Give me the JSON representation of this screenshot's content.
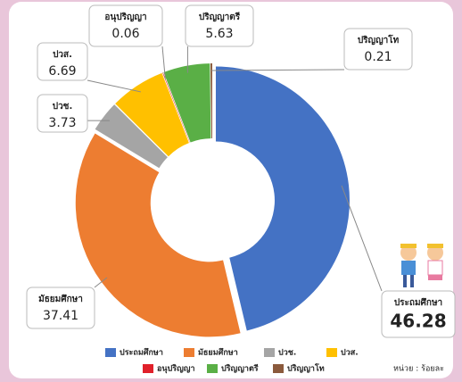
{
  "chart_data": {
    "type": "donut",
    "categories": [
      "ประถมศึกษา",
      "มัธยมศึกษา",
      "ปวช.",
      "ปวส.",
      "อนุปริญญา",
      "ปริญญาตรี",
      "ปริญญาโท"
    ],
    "values": [
      46.28,
      37.41,
      3.73,
      6.69,
      0.06,
      5.63,
      0.21
    ],
    "colors": [
      "#4472c4",
      "#ed7d31",
      "#a5a5a5",
      "#ffc000",
      "#e0202a",
      "#5aaf46",
      "#8b5a3c"
    ],
    "unit_note": "หน่วย : ร้อยละ"
  }
}
